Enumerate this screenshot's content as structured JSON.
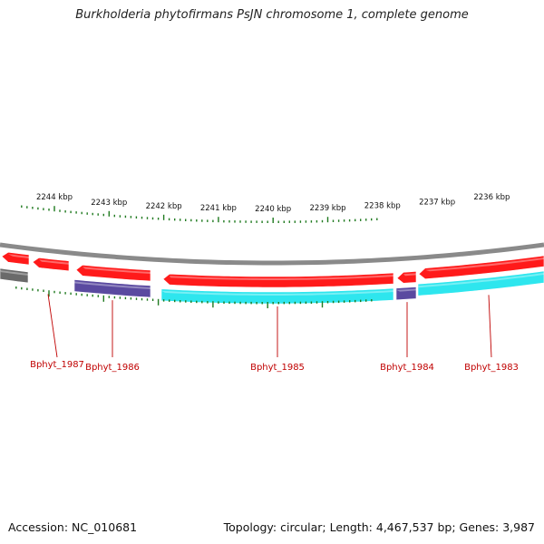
{
  "title": "Burkholderia phytofirmans PsJN chromosome 1, complete genome",
  "footer": {
    "accession": "Accession: NC_010681",
    "summary": "Topology: circular; Length: 4,467,537 bp; Genes: 3,987"
  },
  "colors": {
    "backbone": "#8a8a8a",
    "cds_forward": "#ff1a1a",
    "cds_reverse_a": "#2ee6ee",
    "cds_reverse_b": "#5a4aa0",
    "cds_grey": "#6a6a6a",
    "tick": "#1f7a1f",
    "gene_label": "#c00000"
  },
  "ruler": {
    "unit": "kbp",
    "labels": [
      {
        "kbp": 2244,
        "text": "2244 kbp"
      },
      {
        "kbp": 2243,
        "text": "2243 kbp"
      },
      {
        "kbp": 2242,
        "text": "2242 kbp"
      },
      {
        "kbp": 2241,
        "text": "2241 kbp"
      },
      {
        "kbp": 2240,
        "text": "2240 kbp"
      },
      {
        "kbp": 2239,
        "text": "2239 kbp"
      },
      {
        "kbp": 2238,
        "text": "2238 kbp"
      },
      {
        "kbp": 2237,
        "text": "2237 kbp"
      },
      {
        "kbp": 2236,
        "text": "2236 kbp"
      }
    ]
  },
  "genes": [
    {
      "name": "Bphyt_1987"
    },
    {
      "name": "Bphyt_1986"
    },
    {
      "name": "Bphyt_1985"
    },
    {
      "name": "Bphyt_1984"
    },
    {
      "name": "Bphyt_1983"
    }
  ]
}
